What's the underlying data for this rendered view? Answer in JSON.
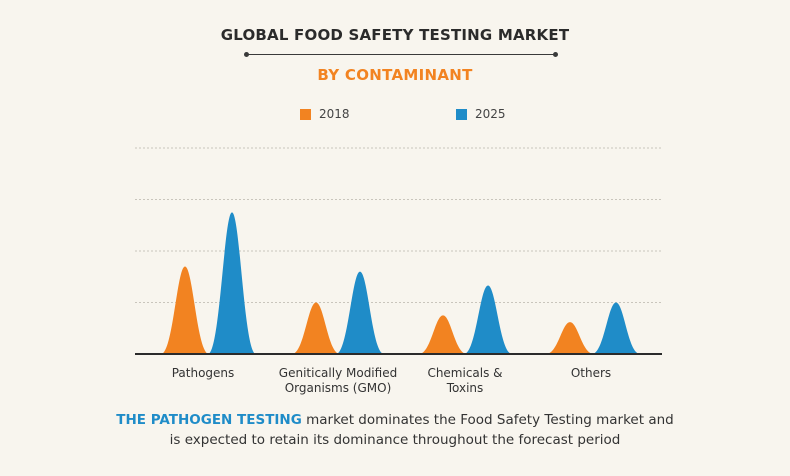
{
  "header": {
    "title": "GLOBAL FOOD SAFETY TESTING MARKET",
    "subtitle": "BY  CONTAMINANT"
  },
  "colors": {
    "series_2018": "#f28321",
    "series_2025": "#1f8cc8"
  },
  "chart_data": {
    "type": "area",
    "categories": [
      [
        "Pathogens"
      ],
      [
        "Genitically Modified",
        "Organisms (GMO)"
      ],
      [
        "Chemicals &",
        "Toxins"
      ],
      [
        "Others"
      ]
    ],
    "series": [
      {
        "name": "2018",
        "values": [
          1.7,
          1.0,
          0.75,
          0.62
        ]
      },
      {
        "name": "2025",
        "values": [
          2.75,
          1.6,
          1.33,
          1.0
        ]
      }
    ],
    "ylim": [
      0,
      4
    ],
    "grid": true,
    "legend": "top-center"
  },
  "footer": {
    "highlight": "THE PATHOGEN TESTING",
    "line1_rest": " market dominates the Food Safety Testing market and",
    "line2": "is expected to retain its dominance throughout the forecast period"
  }
}
